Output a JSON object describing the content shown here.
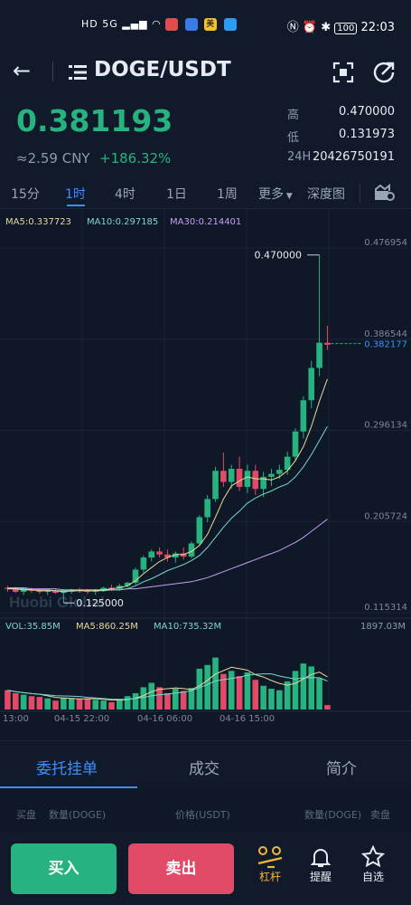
{
  "status_bar": {
    "left_text": "HD 5G",
    "time": "22:03",
    "battery": "100"
  },
  "header": {
    "pair": "DOGE/USDT"
  },
  "price": {
    "last": "0.381193",
    "cny": "≈2.59 CNY",
    "change": "+186.32%",
    "high_label": "高",
    "high": "0.470000",
    "low_label": "低",
    "low": "0.131973",
    "vol_label": "24H",
    "vol": "20426750191"
  },
  "tabs": {
    "t1": "15分",
    "t2": "1时",
    "t3": "4时",
    "t4": "1日",
    "t5": "1周",
    "more": "更多",
    "depth": "深度图"
  },
  "indicators": {
    "ma5": "MA5:0.337723",
    "ma10": "MA10:0.297185",
    "ma30": "MA30:0.214401",
    "vol": "VOL:35.85M",
    "vma5": "MA5:860.25M",
    "vma10": "MA10:735.32M",
    "vmax": "1897.03M"
  },
  "chart_labels": {
    "y1": "0.476954",
    "y2": "0.386544",
    "y3": "0.382177",
    "y4": "0.296134",
    "y5": "0.205724",
    "y6": "0.115314",
    "high_mark": "0.470000",
    "low_mark": "0.125000",
    "watermark": "Huobi Global",
    "x1": "13:00",
    "x2": "04-15 22:00",
    "x3": "04-16 06:00",
    "x4": "04-16 15:00"
  },
  "colors": {
    "up": "#26b37f",
    "down": "#e14b67",
    "accent": "#3e8ef7"
  },
  "chart_data": {
    "type": "candlestick",
    "ylim": [
      0.115314,
      0.476954
    ],
    "candles": [
      [
        0.14,
        0.142,
        0.136,
        0.139
      ],
      [
        0.139,
        0.141,
        0.135,
        0.136
      ],
      [
        0.136,
        0.139,
        0.133,
        0.138
      ],
      [
        0.138,
        0.14,
        0.135,
        0.137
      ],
      [
        0.137,
        0.139,
        0.134,
        0.136
      ],
      [
        0.136,
        0.138,
        0.133,
        0.137
      ],
      [
        0.137,
        0.139,
        0.134,
        0.135
      ],
      [
        0.135,
        0.137,
        0.125,
        0.136
      ],
      [
        0.136,
        0.139,
        0.134,
        0.138
      ],
      [
        0.138,
        0.14,
        0.135,
        0.137
      ],
      [
        0.137,
        0.139,
        0.134,
        0.136
      ],
      [
        0.136,
        0.139,
        0.133,
        0.138
      ],
      [
        0.138,
        0.141,
        0.136,
        0.14
      ],
      [
        0.14,
        0.143,
        0.137,
        0.139
      ],
      [
        0.139,
        0.144,
        0.137,
        0.142
      ],
      [
        0.142,
        0.146,
        0.14,
        0.145
      ],
      [
        0.145,
        0.16,
        0.143,
        0.158
      ],
      [
        0.158,
        0.172,
        0.155,
        0.17
      ],
      [
        0.17,
        0.178,
        0.166,
        0.176
      ],
      [
        0.176,
        0.18,
        0.17,
        0.173
      ],
      [
        0.173,
        0.178,
        0.166,
        0.17
      ],
      [
        0.17,
        0.176,
        0.165,
        0.174
      ],
      [
        0.174,
        0.18,
        0.168,
        0.171
      ],
      [
        0.171,
        0.186,
        0.169,
        0.184
      ],
      [
        0.184,
        0.212,
        0.182,
        0.21
      ],
      [
        0.21,
        0.232,
        0.205,
        0.228
      ],
      [
        0.228,
        0.26,
        0.225,
        0.256
      ],
      [
        0.256,
        0.274,
        0.24,
        0.245
      ],
      [
        0.245,
        0.262,
        0.238,
        0.258
      ],
      [
        0.258,
        0.27,
        0.236,
        0.24
      ],
      [
        0.24,
        0.262,
        0.234,
        0.256
      ],
      [
        0.256,
        0.262,
        0.232,
        0.238
      ],
      [
        0.238,
        0.255,
        0.23,
        0.25
      ],
      [
        0.25,
        0.258,
        0.241,
        0.253
      ],
      [
        0.253,
        0.262,
        0.248,
        0.257
      ],
      [
        0.257,
        0.275,
        0.252,
        0.27
      ],
      [
        0.27,
        0.298,
        0.266,
        0.295
      ],
      [
        0.295,
        0.33,
        0.288,
        0.326
      ],
      [
        0.326,
        0.365,
        0.318,
        0.358
      ],
      [
        0.358,
        0.47,
        0.35,
        0.383
      ],
      [
        0.383,
        0.4,
        0.376,
        0.381
      ]
    ],
    "volumes": [
      0.26,
      0.22,
      0.2,
      0.18,
      0.17,
      0.15,
      0.12,
      0.16,
      0.15,
      0.14,
      0.15,
      0.13,
      0.12,
      0.1,
      0.14,
      0.18,
      0.22,
      0.3,
      0.36,
      0.3,
      0.22,
      0.28,
      0.25,
      0.29,
      0.55,
      0.6,
      0.7,
      0.48,
      0.52,
      0.45,
      0.5,
      0.4,
      0.32,
      0.28,
      0.26,
      0.38,
      0.52,
      0.62,
      0.58,
      0.42,
      0.06
    ],
    "ma5": [
      0.139,
      0.139,
      0.138,
      0.138,
      0.137,
      0.137,
      0.137,
      0.136,
      0.137,
      0.137,
      0.137,
      0.137,
      0.138,
      0.139,
      0.14,
      0.142,
      0.147,
      0.154,
      0.16,
      0.166,
      0.17,
      0.173,
      0.173,
      0.176,
      0.182,
      0.193,
      0.21,
      0.228,
      0.241,
      0.246,
      0.25,
      0.248,
      0.248,
      0.247,
      0.25,
      0.256,
      0.266,
      0.28,
      0.3,
      0.325,
      0.347
    ],
    "ma10": [
      0.139,
      0.139,
      0.139,
      0.138,
      0.138,
      0.138,
      0.137,
      0.137,
      0.137,
      0.137,
      0.137,
      0.137,
      0.137,
      0.138,
      0.138,
      0.139,
      0.142,
      0.146,
      0.149,
      0.153,
      0.157,
      0.16,
      0.163,
      0.167,
      0.172,
      0.18,
      0.19,
      0.2,
      0.209,
      0.216,
      0.224,
      0.229,
      0.233,
      0.236,
      0.24,
      0.243,
      0.25,
      0.26,
      0.272,
      0.286,
      0.3
    ],
    "ma30": [
      0.14,
      0.14,
      0.14,
      0.139,
      0.139,
      0.139,
      0.139,
      0.138,
      0.138,
      0.138,
      0.138,
      0.138,
      0.138,
      0.138,
      0.138,
      0.139,
      0.139,
      0.14,
      0.141,
      0.142,
      0.143,
      0.144,
      0.145,
      0.146,
      0.148,
      0.15,
      0.153,
      0.156,
      0.159,
      0.162,
      0.165,
      0.168,
      0.171,
      0.174,
      0.177,
      0.181,
      0.185,
      0.19,
      0.196,
      0.202,
      0.208
    ]
  },
  "panel": {
    "tab1": "委托挂单",
    "tab2": "成交",
    "tab3": "简介",
    "col1": "买盘",
    "col2": "数量(DOGE)",
    "col3": "价格(USDT)",
    "col4": "数量(DOGE)",
    "col5": "卖盘"
  },
  "bottom": {
    "buy": "买入",
    "sell": "卖出",
    "margin": "杠杆",
    "alert": "提醒",
    "fav": "自选"
  }
}
